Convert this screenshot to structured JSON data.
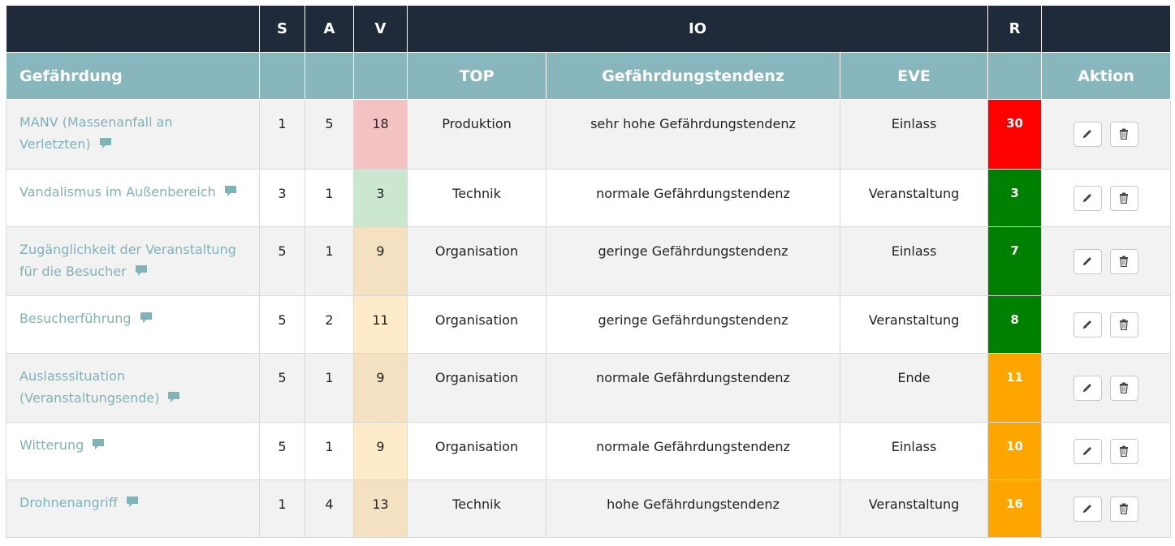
{
  "header_top": {
    "s": "S",
    "a": "A",
    "v": "V",
    "io": "IO",
    "r": "R"
  },
  "header_sub": {
    "hazard": "Gefährdung",
    "top": "TOP",
    "tendency": "Gefährdungstendenz",
    "eve": "EVE",
    "action": "Aktion"
  },
  "rows": [
    {
      "hazard": "MANV (Massenanfall an Verletzten)",
      "s": "1",
      "a": "5",
      "v": "18",
      "top": "Produktion",
      "tendency": "sehr hohe Gefährdungstendenz",
      "eve": "Einlass",
      "r": "30"
    },
    {
      "hazard": "Vandalismus im Außenbereich",
      "s": "3",
      "a": "1",
      "v": "3",
      "top": "Technik",
      "tendency": "normale Gefährdungstendenz",
      "eve": "Veranstaltung",
      "r": "3"
    },
    {
      "hazard": "Zugänglichkeit der Veranstaltung für die Besucher",
      "s": "5",
      "a": "1",
      "v": "9",
      "top": "Organisation",
      "tendency": "geringe Gefährdungstendenz",
      "eve": "Einlass",
      "r": "7"
    },
    {
      "hazard": "Besucherführung",
      "s": "5",
      "a": "2",
      "v": "11",
      "top": "Organisation",
      "tendency": "geringe Gefährdungstendenz",
      "eve": "Veranstaltung",
      "r": "8"
    },
    {
      "hazard": "Auslasssituation (Veranstaltungsende)",
      "s": "5",
      "a": "1",
      "v": "9",
      "top": "Organisation",
      "tendency": "normale Gefährdungstendenz",
      "eve": "Ende",
      "r": "11"
    },
    {
      "hazard": "Witterung",
      "s": "5",
      "a": "1",
      "v": "9",
      "top": "Organisation",
      "tendency": "normale Gefährdungstendenz",
      "eve": "Einlass",
      "r": "10"
    },
    {
      "hazard": "Drohnenangriff",
      "s": "1",
      "a": "4",
      "v": "13",
      "top": "Technik",
      "tendency": "hohe Gefährdungstendenz",
      "eve": "Veranstaltung",
      "r": "16"
    }
  ],
  "colors": {
    "header_dark": "#1f2a3a",
    "header_teal": "#87b7bd",
    "link_teal": "#7fb3b8",
    "r_red": "#ff0000",
    "r_green": "#008000",
    "r_orange": "#ffa500",
    "v_red": "#f4c2c2",
    "v_green": "#cce7cf",
    "v_tan": "#f3e1c2",
    "v_cream": "#fdebc9"
  },
  "icons": {
    "comment": "comment-icon",
    "edit": "pencil-icon",
    "delete": "trash-icon"
  }
}
